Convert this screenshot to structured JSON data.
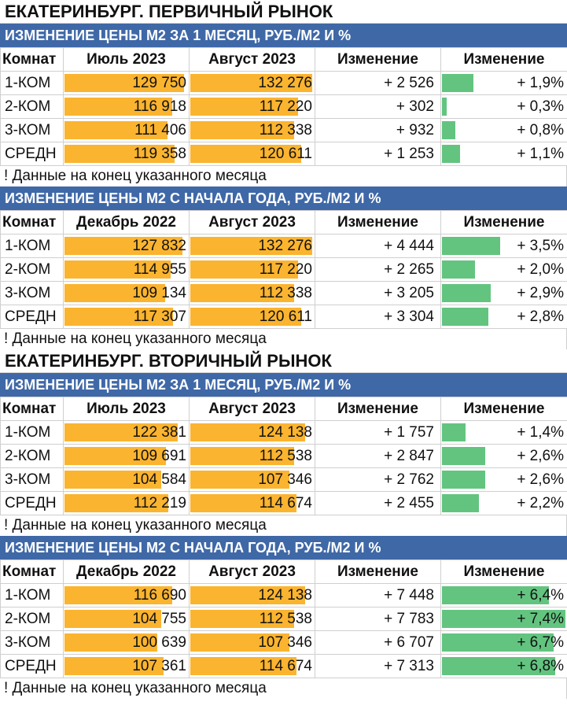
{
  "markets": [
    {
      "title": "ЕКАТЕРИНБУРГ. ПЕРВИЧНЫЙ РЫНОК",
      "sections": [
        {
          "title": "ИЗМЕНЕНИЕ ЦЕНЫ М2 ЗА 1 МЕСЯЦ, РУБ./М2 И %",
          "headers": [
            "Комнат",
            "Июль 2023",
            "Август 2023",
            "Изменение",
            "Изменение"
          ],
          "rows": [
            {
              "room": "1-КОМ",
              "from": "129 750",
              "to": "132 276",
              "delta": "+ 2 526",
              "pct": "+ 1,9%",
              "from_num": 129750,
              "to_num": 132276,
              "pct_num": 1.9
            },
            {
              "room": "2-КОМ",
              "from": "116 918",
              "to": "117 220",
              "delta": "+ 302",
              "pct": "+ 0,3%",
              "from_num": 116918,
              "to_num": 117220,
              "pct_num": 0.3
            },
            {
              "room": "3-КОМ",
              "from": "111 406",
              "to": "112 338",
              "delta": "+ 932",
              "pct": "+ 0,8%",
              "from_num": 111406,
              "to_num": 112338,
              "pct_num": 0.8
            },
            {
              "room": "СРЕДН",
              "from": "119 358",
              "to": "120 611",
              "delta": "+ 1 253",
              "pct": "+ 1,1%",
              "from_num": 119358,
              "to_num": 120611,
              "pct_num": 1.1
            }
          ],
          "note": "! Данные на конец указанного месяца"
        },
        {
          "title": "ИЗМЕНЕНИЕ ЦЕНЫ М2 С НАЧАЛА ГОДА, РУБ./М2 И %",
          "headers": [
            "Комнат",
            "Декабрь 2022",
            "Август 2023",
            "Изменение",
            "Изменение"
          ],
          "rows": [
            {
              "room": "1-КОМ",
              "from": "127 832",
              "to": "132 276",
              "delta": "+ 4 444",
              "pct": "+ 3,5%",
              "from_num": 127832,
              "to_num": 132276,
              "pct_num": 3.5
            },
            {
              "room": "2-КОМ",
              "from": "114 955",
              "to": "117 220",
              "delta": "+ 2 265",
              "pct": "+ 2,0%",
              "from_num": 114955,
              "to_num": 117220,
              "pct_num": 2.0
            },
            {
              "room": "3-КОМ",
              "from": "109 134",
              "to": "112 338",
              "delta": "+ 3 205",
              "pct": "+ 2,9%",
              "from_num": 109134,
              "to_num": 112338,
              "pct_num": 2.9
            },
            {
              "room": "СРЕДН",
              "from": "117 307",
              "to": "120 611",
              "delta": "+ 3 304",
              "pct": "+ 2,8%",
              "from_num": 117307,
              "to_num": 120611,
              "pct_num": 2.8
            }
          ],
          "note": "! Данные на конец указанного месяца"
        }
      ]
    },
    {
      "title": "ЕКАТЕРИНБУРГ. ВТОРИЧНЫЙ РЫНОК",
      "sections": [
        {
          "title": "ИЗМЕНЕНИЕ ЦЕНЫ М2 ЗА 1 МЕСЯЦ, РУБ./М2 И %",
          "headers": [
            "Комнат",
            "Июль 2023",
            "Август 2023",
            "Изменение",
            "Изменение"
          ],
          "rows": [
            {
              "room": "1-КОМ",
              "from": "122 381",
              "to": "124 138",
              "delta": "+ 1 757",
              "pct": "+ 1,4%",
              "from_num": 122381,
              "to_num": 124138,
              "pct_num": 1.4
            },
            {
              "room": "2-КОМ",
              "from": "109 691",
              "to": "112 538",
              "delta": "+ 2 847",
              "pct": "+ 2,6%",
              "from_num": 109691,
              "to_num": 112538,
              "pct_num": 2.6
            },
            {
              "room": "3-КОМ",
              "from": "104 584",
              "to": "107 346",
              "delta": "+ 2 762",
              "pct": "+ 2,6%",
              "from_num": 104584,
              "to_num": 107346,
              "pct_num": 2.6
            },
            {
              "room": "СРЕДН",
              "from": "112 219",
              "to": "114 674",
              "delta": "+ 2 455",
              "pct": "+ 2,2%",
              "from_num": 112219,
              "to_num": 114674,
              "pct_num": 2.2
            }
          ],
          "note": "! Данные на конец указанного месяца"
        },
        {
          "title": "ИЗМЕНЕНИЕ ЦЕНЫ М2 С НАЧАЛА ГОДА, РУБ./М2 И %",
          "headers": [
            "Комнат",
            "Декабрь 2022",
            "Август 2023",
            "Изменение",
            "Изменение"
          ],
          "rows": [
            {
              "room": "1-КОМ",
              "from": "116 690",
              "to": "124 138",
              "delta": "+ 7 448",
              "pct": "+ 6,4%",
              "from_num": 116690,
              "to_num": 124138,
              "pct_num": 6.4
            },
            {
              "room": "2-КОМ",
              "from": "104 755",
              "to": "112 538",
              "delta": "+ 7 783",
              "pct": "+ 7,4%",
              "from_num": 104755,
              "to_num": 112538,
              "pct_num": 7.4
            },
            {
              "room": "3-КОМ",
              "from": "100 639",
              "to": "107 346",
              "delta": "+ 6 707",
              "pct": "+ 6,7%",
              "from_num": 100639,
              "to_num": 107346,
              "pct_num": 6.7
            },
            {
              "room": "СРЕДН",
              "from": "107 361",
              "to": "114 674",
              "delta": "+ 7 313",
              "pct": "+ 6,8%",
              "from_num": 107361,
              "to_num": 114674,
              "pct_num": 6.8
            }
          ],
          "note": "! Данные на конец указанного месяца"
        }
      ]
    }
  ],
  "colors": {
    "section_bar": "#3f68a7",
    "price_bar": "#fbb42f",
    "change_bar": "#63c480"
  }
}
